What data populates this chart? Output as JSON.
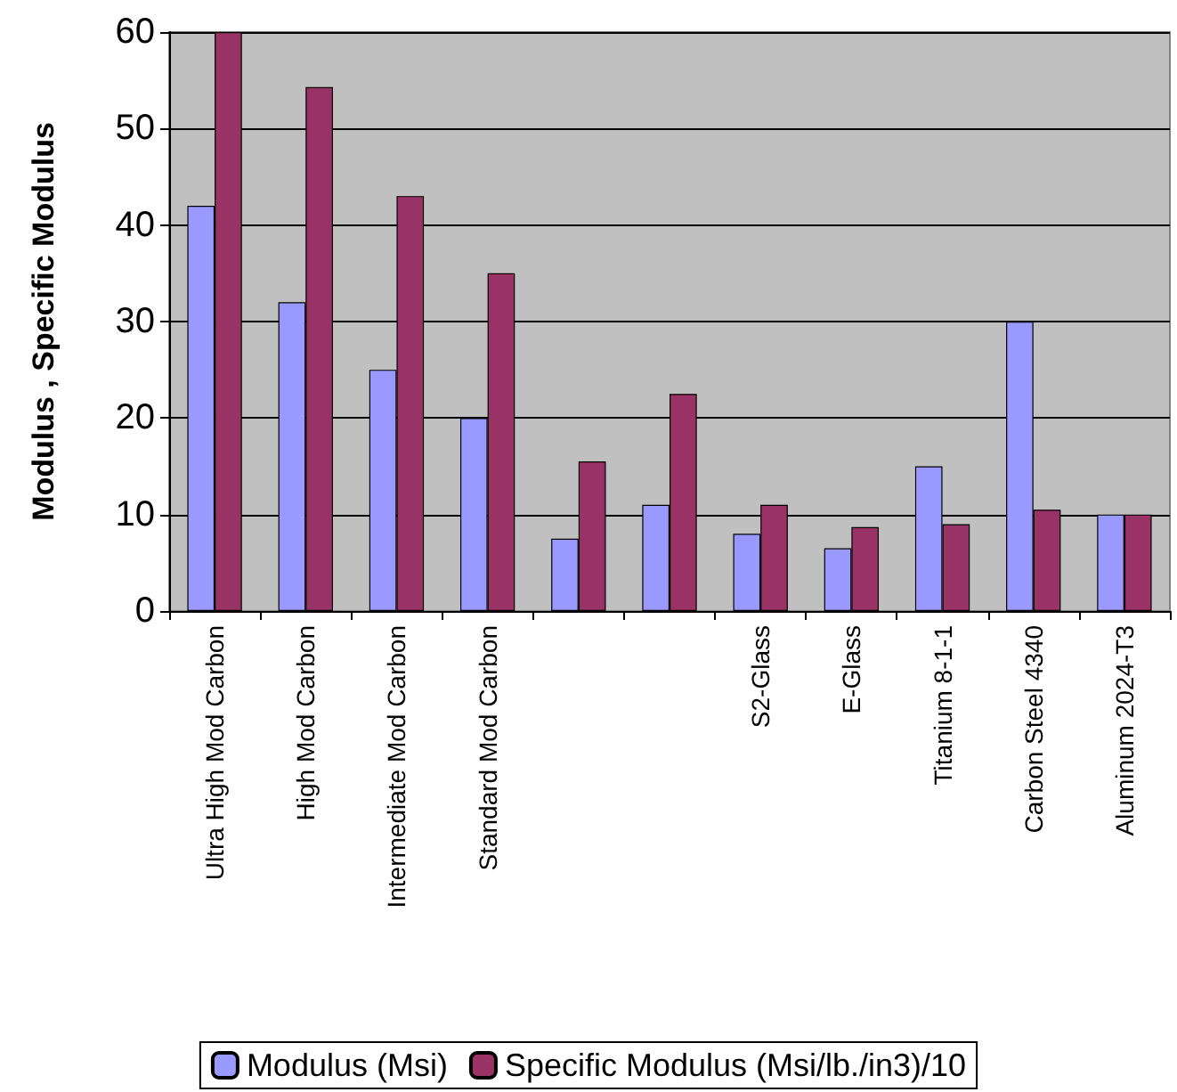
{
  "chart_data": {
    "type": "bar",
    "ylabel": "Modulus , Specific Modulus",
    "categories": [
      "Ultra High Mod Carbon",
      "High Mod Carbon",
      "Intermediate Mod Carbon",
      "Standard Mod Carbon",
      null,
      null,
      "S2-Glass",
      "E-Glass",
      "Titanium 8-1-1",
      "Carbon Steel 4340",
      "Aluminum 2024-T3"
    ],
    "series": [
      {
        "name": "Modulus (Msi)",
        "color": "#9999ff",
        "values": [
          42,
          32,
          25,
          20,
          7.5,
          11,
          8,
          6.5,
          15,
          30,
          10
        ]
      },
      {
        "name": "Specific Modulus (Msi/lb./in3)/10",
        "color": "#993366",
        "values": [
          60,
          54.3,
          43,
          35,
          15.5,
          22.5,
          11,
          8.7,
          9,
          10.5,
          10
        ]
      }
    ],
    "ylim": [
      0,
      60
    ],
    "yticks": [
      0,
      10,
      20,
      30,
      40,
      50,
      60
    ],
    "grid": "y",
    "legend": "bottom"
  }
}
